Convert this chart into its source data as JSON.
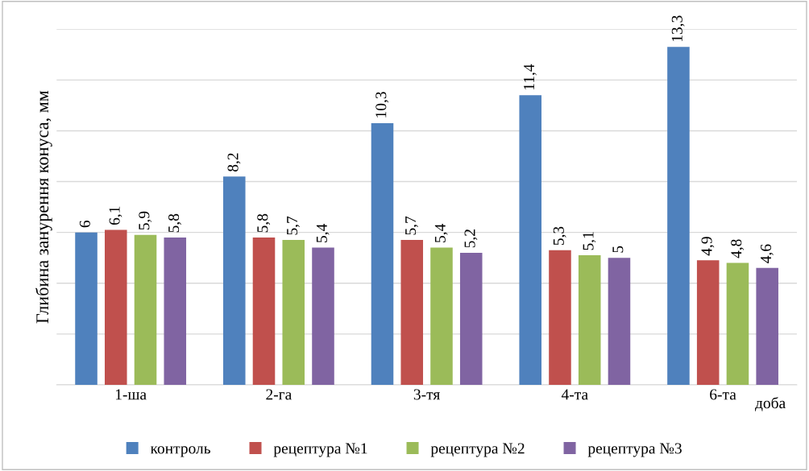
{
  "chart_data": {
    "type": "bar",
    "ylabel": "Глибина занурення конуса, мм",
    "xlabel": "доба",
    "categories": [
      "1-ша",
      "2-га",
      "3-тя",
      "4-та",
      "6-та"
    ],
    "series": [
      {
        "name": "контроль",
        "color": "#4f81bd",
        "values": [
          6,
          8.2,
          10.3,
          11.4,
          13.3
        ],
        "value_labels": [
          "6",
          "8,2",
          "10,3",
          "11,4",
          "13,3"
        ]
      },
      {
        "name": "рецептура №1",
        "color": "#c0504d",
        "values": [
          6.1,
          5.8,
          5.7,
          5.3,
          4.9
        ],
        "value_labels": [
          "6,1",
          "5,8",
          "5,7",
          "5,3",
          "4,9"
        ]
      },
      {
        "name": "рецептура №2",
        "color": "#9bbb59",
        "values": [
          5.9,
          5.7,
          5.4,
          5.1,
          4.8
        ],
        "value_labels": [
          "5,9",
          "5,7",
          "5,4",
          "5,1",
          "4,8"
        ]
      },
      {
        "name": "рецептура №3",
        "color": "#8064a2",
        "values": [
          5.8,
          5.4,
          5.2,
          5,
          4.6
        ],
        "value_labels": [
          "5,8",
          "5,4",
          "5,2",
          "5",
          "4,6"
        ]
      }
    ],
    "ylim": [
      0,
      14
    ],
    "yticks": [
      {
        "value": 0,
        "label": null
      },
      {
        "value": 2,
        "label": null
      },
      {
        "value": 4,
        "label": null
      },
      {
        "value": 6,
        "label": null
      },
      {
        "value": 8,
        "label": null
      },
      {
        "value": 10,
        "label": null
      },
      {
        "value": 12,
        "label": null
      },
      {
        "value": 14,
        "label": null
      }
    ],
    "tick_labels": "x",
    "grid": "y",
    "legend": "bottom"
  }
}
